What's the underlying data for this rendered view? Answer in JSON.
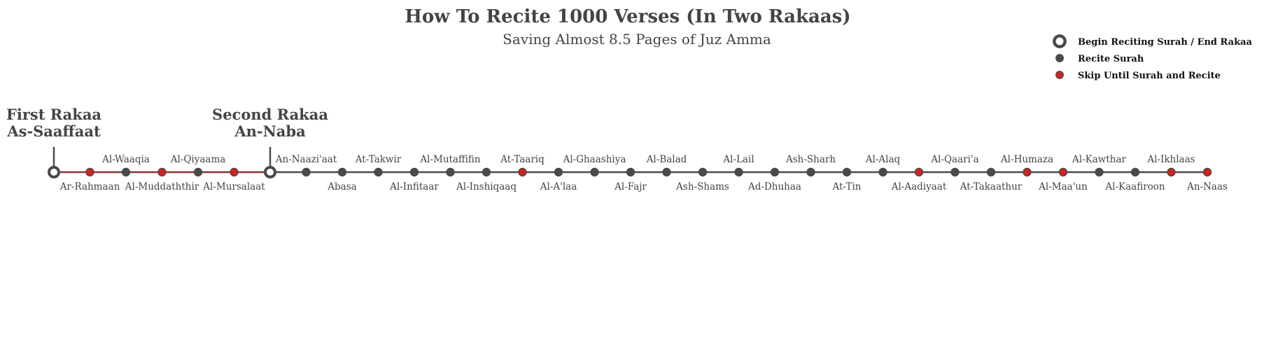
{
  "title": "How To Recite 1000 Verses (In Two Rakaas)",
  "subtitle": "Saving Almost 8.5 Pages of Juz Amma",
  "colors": {
    "line": "#4a4a4a",
    "segment": "#b22222",
    "skip": "#d62020",
    "text": "#444444",
    "ring_center": "#ffffff"
  },
  "legend": [
    {
      "symbol": "ring",
      "label": "Begin Reciting Surah / End Rakaa"
    },
    {
      "symbol": "dot",
      "label": "Recite Surah"
    },
    {
      "symbol": "red-dot",
      "label": "Skip Until Surah and Recite"
    }
  ],
  "rakaas": [
    {
      "line1": "First Rakaa",
      "line2": "As-Saaffaat",
      "at": 0
    },
    {
      "line1": "Second Rakaa",
      "line2": "An-Naba",
      "at": 6
    }
  ],
  "stops": [
    {
      "name": "",
      "kind": "ring",
      "label": ""
    },
    {
      "name": "Ar-Rahmaan",
      "kind": "red-dot",
      "label": "below"
    },
    {
      "name": "Al-Waaqia",
      "kind": "dot",
      "label": "above"
    },
    {
      "name": "Al-Muddaththir",
      "kind": "red-dot",
      "label": "below"
    },
    {
      "name": "Al-Qiyaama",
      "kind": "dot",
      "label": "above"
    },
    {
      "name": "Al-Mursalaat",
      "kind": "red-dot",
      "label": "below"
    },
    {
      "name": "",
      "kind": "ring",
      "label": ""
    },
    {
      "name": "An-Naazi'aat",
      "kind": "dot",
      "label": "above"
    },
    {
      "name": "Abasa",
      "kind": "dot",
      "label": "below"
    },
    {
      "name": "At-Takwir",
      "kind": "dot",
      "label": "above"
    },
    {
      "name": "Al-Infitaar",
      "kind": "dot",
      "label": "below"
    },
    {
      "name": "Al-Mutaffifin",
      "kind": "dot",
      "label": "above"
    },
    {
      "name": "Al-Inshiqaaq",
      "kind": "dot",
      "label": "below"
    },
    {
      "name": "At-Taariq",
      "kind": "red-dot",
      "label": "above"
    },
    {
      "name": "Al-A'laa",
      "kind": "dot",
      "label": "below"
    },
    {
      "name": "Al-Ghaashiya",
      "kind": "dot",
      "label": "above"
    },
    {
      "name": "Al-Fajr",
      "kind": "dot",
      "label": "below"
    },
    {
      "name": "Al-Balad",
      "kind": "dot",
      "label": "above"
    },
    {
      "name": "Ash-Shams",
      "kind": "dot",
      "label": "below"
    },
    {
      "name": "Al-Lail",
      "kind": "dot",
      "label": "above"
    },
    {
      "name": "Ad-Dhuhaa",
      "kind": "dot",
      "label": "below"
    },
    {
      "name": "Ash-Sharh",
      "kind": "dot",
      "label": "above"
    },
    {
      "name": "At-Tin",
      "kind": "dot",
      "label": "below"
    },
    {
      "name": "Al-Alaq",
      "kind": "dot",
      "label": "above"
    },
    {
      "name": "Al-Aadiyaat",
      "kind": "red-dot",
      "label": "below"
    },
    {
      "name": "Al-Qaari'a",
      "kind": "dot",
      "label": "above"
    },
    {
      "name": "At-Takaathur",
      "kind": "dot",
      "label": "below"
    },
    {
      "name": "Al-Humaza",
      "kind": "red-dot",
      "label": "above"
    },
    {
      "name": "Al-Maa'un",
      "kind": "red-dot",
      "label": "below"
    },
    {
      "name": "Al-Kawthar",
      "kind": "dot",
      "label": "above"
    },
    {
      "name": "Al-Kaafiroon",
      "kind": "dot",
      "label": "below"
    },
    {
      "name": "Al-Ikhlaas",
      "kind": "red-dot",
      "label": "above"
    },
    {
      "name": "An-Naas",
      "kind": "red-dot",
      "label": "below"
    }
  ]
}
